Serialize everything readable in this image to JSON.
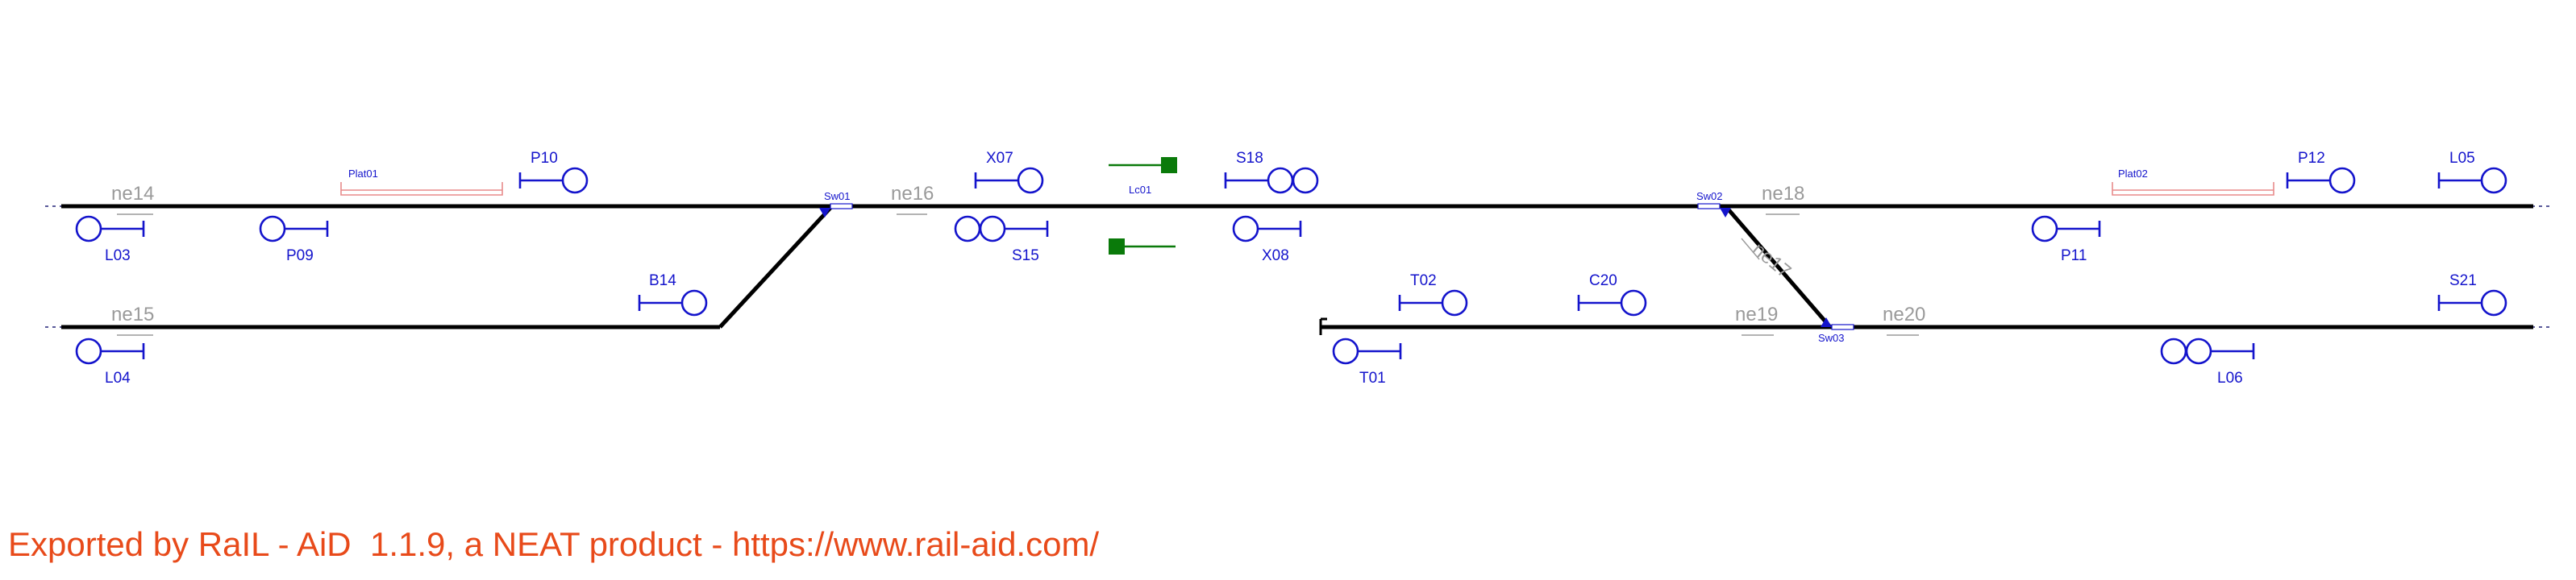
{
  "diagram": {
    "footer": "Exported by RaIL - AiD  1.1.9, a NEAT product - https://www.rail-aid.com/",
    "track_sections": [
      "ne14",
      "ne15",
      "ne16",
      "ne17",
      "ne18",
      "ne19",
      "ne20"
    ],
    "switches": [
      "Sw01",
      "Sw02",
      "Sw03"
    ],
    "platforms": [
      "Plat01",
      "Plat02"
    ],
    "level_crossing": "Lc01",
    "signals": [
      "L03",
      "P09",
      "P10",
      "X07",
      "S15",
      "S18",
      "X08",
      "B14",
      "L04",
      "T02",
      "C20",
      "T01",
      "P11",
      "P12",
      "L05",
      "L06",
      "S21"
    ],
    "colors": {
      "track": "#000000",
      "signal": "#1414cc",
      "section_label": "#9a9a9a",
      "platform": "#e88b8b",
      "level_crossing": "#0a7a0a",
      "footer": "#e84a1a"
    }
  }
}
